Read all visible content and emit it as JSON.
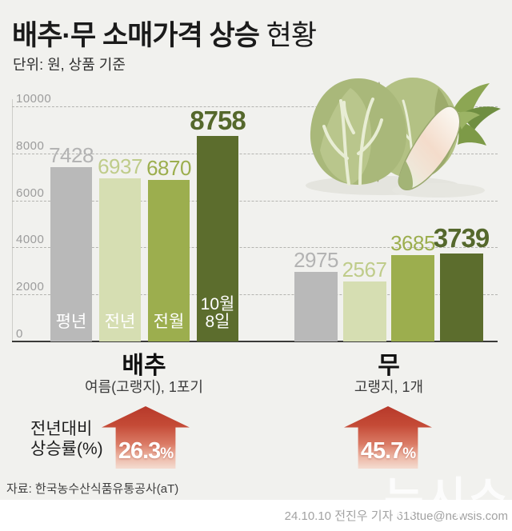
{
  "header": {
    "title_strong": "배추·무 소매가격 상승",
    "title_light": "현황",
    "subtitle": "단위: 원, 상품 기준"
  },
  "chart_data": {
    "type": "bar",
    "unit": "원",
    "ylim": [
      0,
      10000
    ],
    "yticks": [
      0,
      2000,
      4000,
      6000,
      8000,
      10000
    ],
    "grid": "dashed-horizontal",
    "categories": [
      "평년",
      "전년",
      "전월",
      "10월 8일"
    ],
    "groups": [
      {
        "name": "배추",
        "spec": "여름(고랭지), 1포기",
        "values": [
          7428,
          6937,
          6870,
          8758
        ],
        "yoy": "26.3"
      },
      {
        "name": "무",
        "spec": "고랭지, 1개",
        "values": [
          2975,
          2567,
          3685,
          3739
        ],
        "yoy": "45.7"
      }
    ],
    "bar_colors": [
      "#b9b9b9",
      "#d6deb2",
      "#9cae4e",
      "#5c6d2d"
    ],
    "value_label_colors": [
      "#b3b3b3",
      "#bfcc8a",
      "#9cae4e",
      "#55682c"
    ]
  },
  "rise": {
    "label_line1": "전년대비",
    "label_line2": "상승률(%)",
    "unit": "%",
    "arrow_color": "#b7392a"
  },
  "footer": {
    "source": "자료: 한국농수산식품유통공사(aT)",
    "credit": "24.10.10 전진우 기자 618tue@newsis.com",
    "watermark": "뉴시스"
  },
  "illustration": "cabbage-and-radish"
}
